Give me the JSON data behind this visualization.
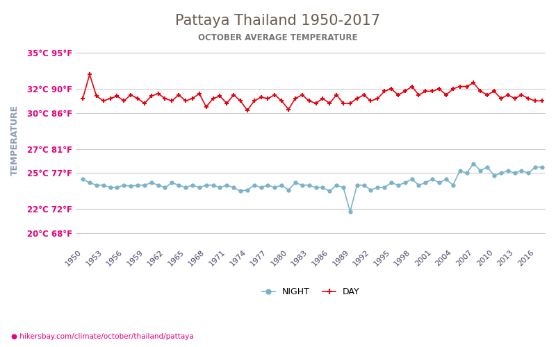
{
  "title": "Pattaya Thailand 1950-2017",
  "subtitle": "OCTOBER AVERAGE TEMPERATURE",
  "title_color": "#6b5a4e",
  "subtitle_color": "#777777",
  "ylabel": "TEMPERATURE",
  "ylabel_color": "#8a9bb0",
  "website": "hikersbay.com/climate/october/thailand/pattaya",
  "years": [
    1950,
    1951,
    1952,
    1953,
    1954,
    1955,
    1956,
    1957,
    1958,
    1959,
    1960,
    1961,
    1962,
    1963,
    1964,
    1965,
    1966,
    1967,
    1968,
    1969,
    1970,
    1971,
    1972,
    1973,
    1974,
    1975,
    1976,
    1977,
    1978,
    1979,
    1980,
    1981,
    1982,
    1983,
    1984,
    1985,
    1986,
    1987,
    1988,
    1989,
    1990,
    1991,
    1992,
    1993,
    1994,
    1995,
    1996,
    1997,
    1998,
    1999,
    2000,
    2001,
    2002,
    2003,
    2004,
    2005,
    2006,
    2007,
    2008,
    2009,
    2010,
    2011,
    2012,
    2013,
    2014,
    2015,
    2016,
    2017
  ],
  "day_temps": [
    31.2,
    33.2,
    31.4,
    31.0,
    31.2,
    31.4,
    31.0,
    31.5,
    31.2,
    30.8,
    31.4,
    31.6,
    31.2,
    31.0,
    31.5,
    31.0,
    31.2,
    31.6,
    30.5,
    31.2,
    31.4,
    30.8,
    31.5,
    31.0,
    30.2,
    31.0,
    31.3,
    31.2,
    31.5,
    31.0,
    30.3,
    31.2,
    31.5,
    31.0,
    30.8,
    31.2,
    30.8,
    31.5,
    30.8,
    30.8,
    31.2,
    31.5,
    31.0,
    31.2,
    31.8,
    32.0,
    31.5,
    31.8,
    32.2,
    31.5,
    31.8,
    31.8,
    32.0,
    31.5,
    32.0,
    32.2,
    32.2,
    32.5,
    31.8,
    31.5,
    31.8,
    31.2,
    31.5,
    31.2,
    31.5,
    31.2,
    31.0,
    31.0
  ],
  "night_temps": [
    24.5,
    24.2,
    24.0,
    24.0,
    23.8,
    23.8,
    24.0,
    23.9,
    24.0,
    24.0,
    24.2,
    24.0,
    23.8,
    24.2,
    24.0,
    23.8,
    24.0,
    23.8,
    24.0,
    24.0,
    23.8,
    24.0,
    23.8,
    23.5,
    23.6,
    24.0,
    23.8,
    24.0,
    23.8,
    24.0,
    23.6,
    24.2,
    24.0,
    24.0,
    23.8,
    23.8,
    23.5,
    24.0,
    23.8,
    21.8,
    24.0,
    24.0,
    23.6,
    23.8,
    23.8,
    24.2,
    24.0,
    24.2,
    24.5,
    24.0,
    24.2,
    24.5,
    24.2,
    24.5,
    24.0,
    25.2,
    25.0,
    25.8,
    25.2,
    25.5,
    24.8,
    25.0,
    25.2,
    25.0,
    25.2,
    25.0,
    25.5,
    25.5
  ],
  "yticks_c": [
    20,
    22,
    25,
    27,
    30,
    32,
    35
  ],
  "ytick_labels": [
    "20°C 68°F",
    "22°C 72°F",
    "25°C 77°F",
    "27°C 81°F",
    "30°C 86°F",
    "32°C 90°F",
    "35°C 95°F"
  ],
  "xtick_years": [
    1950,
    1953,
    1956,
    1959,
    1962,
    1965,
    1968,
    1971,
    1974,
    1977,
    1980,
    1983,
    1986,
    1989,
    1992,
    1995,
    1998,
    2001,
    2004,
    2007,
    2010,
    2013,
    2016
  ],
  "day_color": "#e8000d",
  "night_color": "#7ab3c8",
  "tick_label_color": "#e8007a",
  "grid_color": "#cccccc",
  "bg_color": "#ffffff",
  "ylim_min": 19,
  "ylim_max": 36.5
}
